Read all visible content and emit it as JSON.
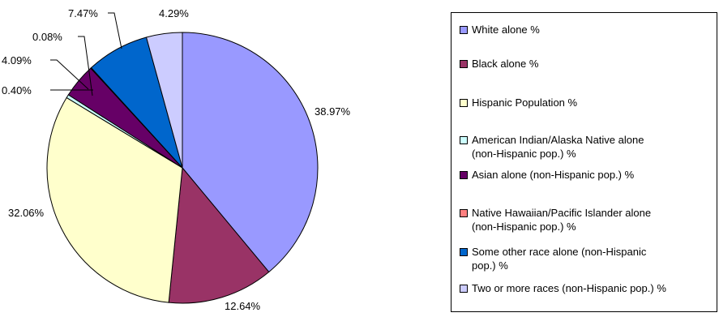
{
  "chart_data": {
    "type": "pie",
    "title": "",
    "slices": [
      {
        "label": "White alone %",
        "value": 38.97,
        "value_label": "38.97%",
        "color": "#9999ff"
      },
      {
        "label": "Black alone %",
        "value": 12.64,
        "value_label": "12.64%",
        "color": "#993366"
      },
      {
        "label": "Hispanic Population %",
        "value": 32.06,
        "value_label": "32.06%",
        "color": "#ffffcc"
      },
      {
        "label": "American Indian/Alaska Native alone (non-Hispanic pop.) %",
        "value": 0.4,
        "value_label": "0.40%",
        "color": "#ccffff"
      },
      {
        "label": "Asian alone (non-Hispanic pop.) %",
        "value": 4.09,
        "value_label": "4.09%",
        "color": "#660066"
      },
      {
        "label": "Native Hawaiian/Pacific Islander alone (non-Hispanic pop.) %",
        "value": 0.08,
        "value_label": "0.08%",
        "color": "#ff8080"
      },
      {
        "label": "Some other race alone (non-Hispanic pop.) %",
        "value": 7.47,
        "value_label": "7.47%",
        "color": "#0066cc"
      },
      {
        "label": "Two or more races (non-Hispanic pop.) %",
        "value": 4.29,
        "value_label": "4.29%",
        "color": "#ccccff"
      }
    ],
    "legend_position": "right"
  }
}
